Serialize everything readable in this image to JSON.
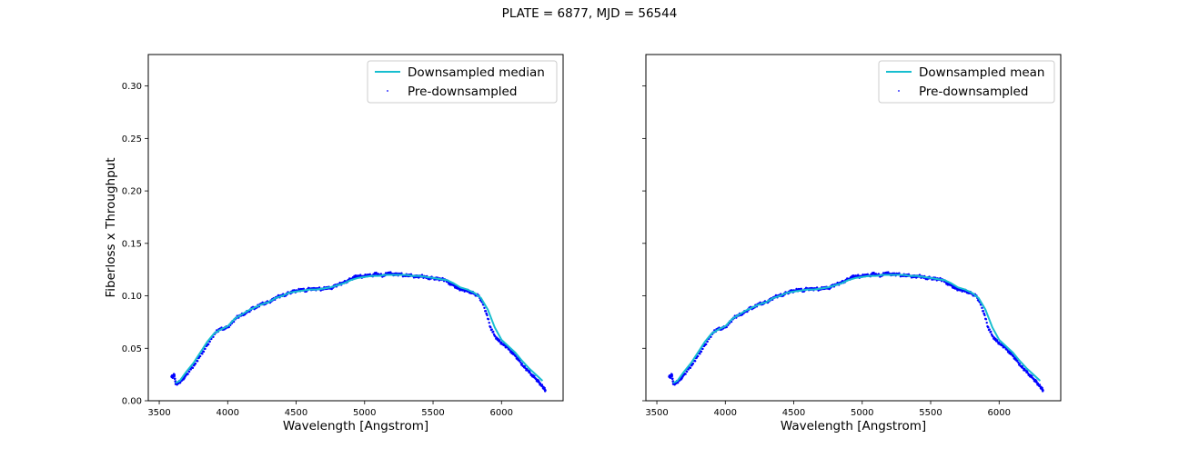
{
  "figure": {
    "suptitle": "PLATE = 6877, MJD = 56544"
  },
  "colors": {
    "downsampled_line": "#17becf",
    "predownsampled_points": "#0000ff",
    "axes": "#000000",
    "legend_border": "#cccccc"
  },
  "chart_data": [
    {
      "type": "line",
      "panel": "left",
      "xlabel": "Wavelength [Angstrom]",
      "ylabel": "Fiberloss x Throughput",
      "xlim": [
        3420,
        6450
      ],
      "ylim": [
        0,
        0.33
      ],
      "xticks": [
        3500,
        4000,
        4500,
        5000,
        5500,
        6000
      ],
      "xtick_labels": [
        "3500",
        "4000",
        "4500",
        "5000",
        "5500",
        "6000"
      ],
      "yticks": [
        0.0,
        0.05,
        0.1,
        0.15,
        0.2,
        0.25,
        0.3
      ],
      "ytick_labels": [
        "0.00",
        "0.05",
        "0.10",
        "0.15",
        "0.20",
        "0.25",
        "0.30"
      ],
      "show_ytick_labels": true,
      "grid": false,
      "legend_position": "top-right",
      "legend": [
        "Downsampled median",
        "Pre-downsampled"
      ],
      "series": [
        {
          "name": "Downsampled median",
          "kind": "line",
          "x": [
            3620,
            3650,
            3700,
            3750,
            3800,
            3850,
            3900,
            3950,
            4000,
            4050,
            4100,
            4150,
            4200,
            4250,
            4300,
            4350,
            4400,
            4450,
            4500,
            4550,
            4600,
            4650,
            4700,
            4750,
            4800,
            4850,
            4900,
            4950,
            5000,
            5050,
            5100,
            5150,
            5200,
            5250,
            5300,
            5350,
            5400,
            5450,
            5500,
            5550,
            5600,
            5650,
            5700,
            5750,
            5800,
            5850,
            5900,
            5950,
            6000,
            6050,
            6100,
            6150,
            6200,
            6250,
            6300
          ],
          "y": [
            0.017,
            0.019,
            0.028,
            0.036,
            0.046,
            0.056,
            0.064,
            0.068,
            0.071,
            0.078,
            0.082,
            0.086,
            0.089,
            0.092,
            0.094,
            0.098,
            0.1,
            0.103,
            0.104,
            0.105,
            0.106,
            0.106,
            0.107,
            0.108,
            0.11,
            0.112,
            0.115,
            0.117,
            0.118,
            0.119,
            0.119,
            0.12,
            0.12,
            0.12,
            0.12,
            0.119,
            0.119,
            0.118,
            0.117,
            0.116,
            0.115,
            0.112,
            0.108,
            0.106,
            0.103,
            0.098,
            0.087,
            0.07,
            0.058,
            0.052,
            0.046,
            0.038,
            0.031,
            0.025,
            0.019
          ]
        },
        {
          "name": "Pre-downsampled",
          "kind": "points",
          "x": [
            3590,
            3600,
            3610,
            3620,
            3640,
            3660,
            3680,
            3700,
            3730,
            3760,
            3790,
            3820,
            3850,
            3880,
            3910,
            3940,
            3970,
            4000,
            4030,
            4060,
            4090,
            4120,
            4150,
            4180,
            4210,
            4240,
            4270,
            4300,
            4330,
            4360,
            4390,
            4420,
            4450,
            4480,
            4510,
            4540,
            4570,
            4600,
            4630,
            4660,
            4690,
            4720,
            4750,
            4780,
            4810,
            4840,
            4870,
            4900,
            4930,
            4960,
            4990,
            5020,
            5050,
            5080,
            5110,
            5140,
            5170,
            5200,
            5230,
            5260,
            5290,
            5320,
            5350,
            5380,
            5410,
            5440,
            5470,
            5500,
            5530,
            5560,
            5590,
            5620,
            5650,
            5680,
            5710,
            5740,
            5770,
            5800,
            5830,
            5860,
            5890,
            5920,
            5950,
            5980,
            6010,
            6040,
            6070,
            6100,
            6130,
            6160,
            6190,
            6220,
            6250,
            6270,
            6290,
            6310,
            6320
          ],
          "y": [
            0.023,
            0.023,
            0.025,
            0.016,
            0.017,
            0.019,
            0.022,
            0.025,
            0.03,
            0.035,
            0.041,
            0.047,
            0.053,
            0.059,
            0.065,
            0.068,
            0.069,
            0.07,
            0.074,
            0.079,
            0.081,
            0.083,
            0.085,
            0.088,
            0.089,
            0.092,
            0.093,
            0.094,
            0.096,
            0.099,
            0.1,
            0.101,
            0.103,
            0.104,
            0.105,
            0.106,
            0.105,
            0.107,
            0.106,
            0.107,
            0.106,
            0.108,
            0.107,
            0.109,
            0.111,
            0.112,
            0.114,
            0.116,
            0.118,
            0.119,
            0.118,
            0.12,
            0.119,
            0.121,
            0.12,
            0.119,
            0.122,
            0.121,
            0.12,
            0.121,
            0.119,
            0.12,
            0.119,
            0.118,
            0.119,
            0.118,
            0.117,
            0.117,
            0.116,
            0.116,
            0.115,
            0.112,
            0.11,
            0.107,
            0.106,
            0.105,
            0.104,
            0.102,
            0.1,
            0.094,
            0.083,
            0.07,
            0.062,
            0.057,
            0.054,
            0.051,
            0.047,
            0.043,
            0.038,
            0.033,
            0.029,
            0.025,
            0.021,
            0.018,
            0.015,
            0.012,
            0.01
          ]
        }
      ]
    },
    {
      "type": "line",
      "panel": "right",
      "xlabel": "Wavelength [Angstrom]",
      "ylabel": "",
      "xlim": [
        3420,
        6450
      ],
      "ylim": [
        0,
        0.33
      ],
      "xticks": [
        3500,
        4000,
        4500,
        5000,
        5500,
        6000
      ],
      "xtick_labels": [
        "3500",
        "4000",
        "4500",
        "5000",
        "5500",
        "6000"
      ],
      "yticks": [
        0.0,
        0.05,
        0.1,
        0.15,
        0.2,
        0.25,
        0.3
      ],
      "ytick_labels": [],
      "show_ytick_labels": false,
      "grid": false,
      "legend_position": "top-right",
      "legend": [
        "Downsampled mean",
        "Pre-downsampled"
      ],
      "series": [
        {
          "name": "Downsampled mean",
          "kind": "line",
          "x": [
            3620,
            3650,
            3700,
            3750,
            3800,
            3850,
            3900,
            3950,
            4000,
            4050,
            4100,
            4150,
            4200,
            4250,
            4300,
            4350,
            4400,
            4450,
            4500,
            4550,
            4600,
            4650,
            4700,
            4750,
            4800,
            4850,
            4900,
            4950,
            5000,
            5050,
            5100,
            5150,
            5200,
            5250,
            5300,
            5350,
            5400,
            5450,
            5500,
            5550,
            5600,
            5650,
            5700,
            5750,
            5800,
            5850,
            5900,
            5950,
            6000,
            6050,
            6100,
            6150,
            6200,
            6250,
            6300
          ],
          "y": [
            0.017,
            0.019,
            0.028,
            0.036,
            0.046,
            0.056,
            0.064,
            0.068,
            0.071,
            0.078,
            0.082,
            0.086,
            0.089,
            0.092,
            0.094,
            0.098,
            0.1,
            0.103,
            0.104,
            0.105,
            0.106,
            0.106,
            0.107,
            0.108,
            0.11,
            0.112,
            0.115,
            0.117,
            0.118,
            0.119,
            0.119,
            0.12,
            0.12,
            0.12,
            0.12,
            0.119,
            0.119,
            0.118,
            0.117,
            0.116,
            0.115,
            0.112,
            0.108,
            0.106,
            0.103,
            0.098,
            0.087,
            0.07,
            0.058,
            0.052,
            0.046,
            0.038,
            0.031,
            0.025,
            0.019
          ]
        },
        {
          "name": "Pre-downsampled",
          "kind": "points",
          "x": [
            3590,
            3600,
            3610,
            3620,
            3640,
            3660,
            3680,
            3700,
            3730,
            3760,
            3790,
            3820,
            3850,
            3880,
            3910,
            3940,
            3970,
            4000,
            4030,
            4060,
            4090,
            4120,
            4150,
            4180,
            4210,
            4240,
            4270,
            4300,
            4330,
            4360,
            4390,
            4420,
            4450,
            4480,
            4510,
            4540,
            4570,
            4600,
            4630,
            4660,
            4690,
            4720,
            4750,
            4780,
            4810,
            4840,
            4870,
            4900,
            4930,
            4960,
            4990,
            5020,
            5050,
            5080,
            5110,
            5140,
            5170,
            5200,
            5230,
            5260,
            5290,
            5320,
            5350,
            5380,
            5410,
            5440,
            5470,
            5500,
            5530,
            5560,
            5590,
            5620,
            5650,
            5680,
            5710,
            5740,
            5770,
            5800,
            5830,
            5860,
            5890,
            5920,
            5950,
            5980,
            6010,
            6040,
            6070,
            6100,
            6130,
            6160,
            6190,
            6220,
            6250,
            6270,
            6290,
            6310,
            6320
          ],
          "y": [
            0.023,
            0.023,
            0.025,
            0.016,
            0.017,
            0.019,
            0.022,
            0.025,
            0.03,
            0.035,
            0.041,
            0.047,
            0.053,
            0.059,
            0.065,
            0.068,
            0.069,
            0.07,
            0.074,
            0.079,
            0.081,
            0.083,
            0.085,
            0.088,
            0.089,
            0.092,
            0.093,
            0.094,
            0.096,
            0.099,
            0.1,
            0.101,
            0.103,
            0.104,
            0.105,
            0.106,
            0.105,
            0.107,
            0.106,
            0.107,
            0.106,
            0.108,
            0.107,
            0.109,
            0.111,
            0.112,
            0.114,
            0.116,
            0.118,
            0.119,
            0.118,
            0.12,
            0.119,
            0.121,
            0.12,
            0.119,
            0.122,
            0.121,
            0.12,
            0.121,
            0.119,
            0.12,
            0.119,
            0.118,
            0.119,
            0.118,
            0.117,
            0.117,
            0.116,
            0.116,
            0.115,
            0.112,
            0.11,
            0.107,
            0.106,
            0.105,
            0.104,
            0.102,
            0.1,
            0.094,
            0.083,
            0.07,
            0.062,
            0.057,
            0.054,
            0.051,
            0.047,
            0.043,
            0.038,
            0.033,
            0.029,
            0.025,
            0.021,
            0.018,
            0.015,
            0.012,
            0.01
          ]
        }
      ]
    }
  ]
}
